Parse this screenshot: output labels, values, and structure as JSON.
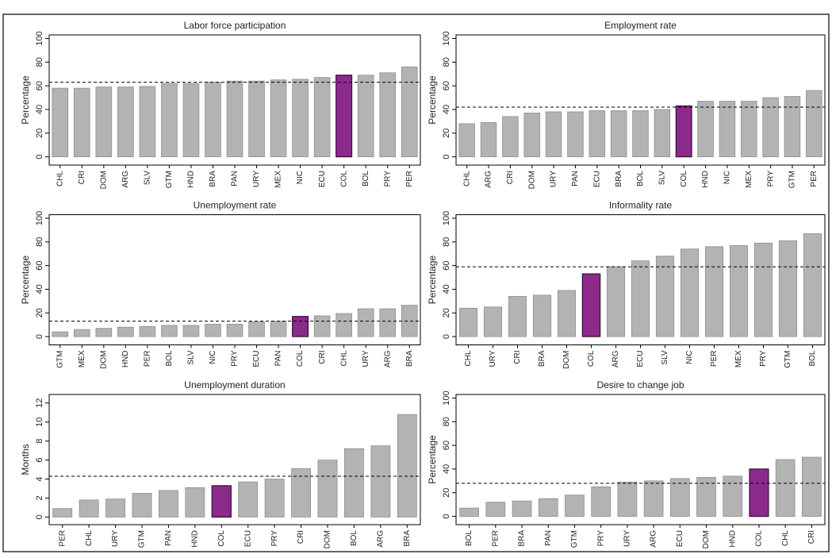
{
  "chart_data": [
    {
      "type": "bar",
      "title": "Labor force participation",
      "ylabel": "Percentage",
      "categories": [
        "CHL",
        "CRI",
        "DOM",
        "ARG",
        "SLV",
        "GTM",
        "HND",
        "BRA",
        "PAN",
        "URY",
        "MEX",
        "NIC",
        "ECU",
        "COL",
        "BOL",
        "PRY",
        "PER"
      ],
      "values": [
        58,
        58,
        59,
        59,
        59.5,
        62,
        62,
        63,
        64,
        64,
        65,
        65.5,
        67,
        69,
        69,
        71,
        76
      ],
      "ylim": [
        -7,
        103
      ],
      "yticks": [
        0,
        20,
        40,
        60,
        80,
        100
      ],
      "reference_line": 63,
      "color": "#b3b3b3",
      "highlight": "COL",
      "highlight_color": "#8c2a8c"
    },
    {
      "type": "bar",
      "title": "Employment rate",
      "ylabel": "Percentage",
      "categories": [
        "CHL",
        "ARG",
        "CRI",
        "DOM",
        "URY",
        "PAN",
        "ECU",
        "BRA",
        "BOL",
        "SLV",
        "COL",
        "HND",
        "NIC",
        "MEX",
        "PRY",
        "GTM",
        "PER"
      ],
      "values": [
        28,
        29,
        34,
        37,
        38,
        38,
        39,
        39,
        39,
        40,
        43,
        47,
        47,
        47,
        50,
        51,
        56
      ],
      "ylim": [
        -7,
        103
      ],
      "yticks": [
        0,
        20,
        40,
        60,
        80,
        100
      ],
      "reference_line": 42,
      "color": "#b3b3b3",
      "highlight": "COL",
      "highlight_color": "#8c2a8c"
    },
    {
      "type": "bar",
      "title": "Unemployment rate",
      "ylabel": "Percentage",
      "categories": [
        "GTM",
        "MEX",
        "DOM",
        "HND",
        "PER",
        "BOL",
        "SLV",
        "NIC",
        "PRY",
        "ECU",
        "PAN",
        "COL",
        "CRI",
        "CHL",
        "URY",
        "ARG",
        "BRA"
      ],
      "values": [
        4,
        6,
        7,
        8,
        8.5,
        9.5,
        9.5,
        10.5,
        10.5,
        12.5,
        13,
        17,
        17.5,
        19.5,
        23.5,
        23.5,
        26.5
      ],
      "ylim": [
        -7,
        103
      ],
      "yticks": [
        0,
        20,
        40,
        60,
        80,
        100
      ],
      "reference_line": 13,
      "color": "#b3b3b3",
      "highlight": "COL",
      "highlight_color": "#8c2a8c"
    },
    {
      "type": "bar",
      "title": "Informality rate",
      "ylabel": "Percentage",
      "categories": [
        "CHL",
        "URY",
        "CRI",
        "BRA",
        "DOM",
        "COL",
        "ARG",
        "ECU",
        "SLV",
        "NIC",
        "PER",
        "MEX",
        "PRY",
        "GTM",
        "BOL"
      ],
      "values": [
        24,
        25,
        34,
        35,
        39,
        53,
        59,
        64,
        68,
        74,
        76,
        77,
        79,
        81,
        87
      ],
      "ylim": [
        -7,
        103
      ],
      "yticks": [
        0,
        20,
        40,
        60,
        80,
        100
      ],
      "reference_line": 59,
      "color": "#b3b3b3",
      "highlight": "COL",
      "highlight_color": "#8c2a8c"
    },
    {
      "type": "bar",
      "title": "Unemployment duration",
      "ylabel": "Months",
      "categories": [
        "PER",
        "CHL",
        "URY",
        "GTM",
        "PAN",
        "HND",
        "COL",
        "ECU",
        "PRY",
        "CRI",
        "DOM",
        "BOL",
        "ARG",
        "BRA"
      ],
      "values": [
        0.9,
        1.8,
        1.9,
        2.5,
        2.8,
        3.1,
        3.3,
        3.7,
        4.0,
        5.1,
        6.0,
        7.2,
        7.5,
        10.8
      ],
      "ylim": [
        -0.8,
        12.9
      ],
      "yticks": [
        0,
        2,
        4,
        6,
        8,
        10,
        12
      ],
      "reference_line": 4.3,
      "color": "#b3b3b3",
      "highlight": "COL",
      "highlight_color": "#8c2a8c"
    },
    {
      "type": "bar",
      "title": "Desire to change job",
      "ylabel": "Percentage",
      "categories": [
        "BOL",
        "PER",
        "BRA",
        "PAN",
        "GTM",
        "PRY",
        "URY",
        "ARG",
        "ECU",
        "DOM",
        "HND",
        "COL",
        "CHL",
        "CRI"
      ],
      "values": [
        7,
        12,
        13,
        15,
        18,
        25,
        29,
        30,
        32,
        33,
        34,
        40,
        48,
        50
      ],
      "ylim": [
        -7,
        103
      ],
      "yticks": [
        0,
        20,
        40,
        60,
        80,
        100
      ],
      "reference_line": 28,
      "color": "#b3b3b3",
      "highlight": "COL",
      "highlight_color": "#8c2a8c"
    }
  ]
}
